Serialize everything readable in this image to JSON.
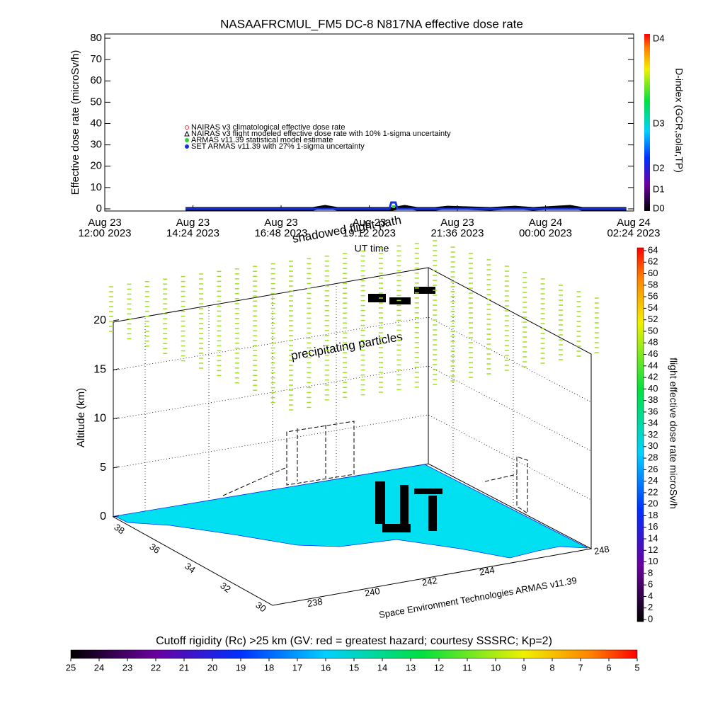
{
  "chart_data": [
    {
      "type": "line",
      "title": "NASAAFRCMUL_FM5 DC-8   N817NA effective dose rate",
      "ylabel": "Effective dose rate (microSv/h)",
      "xlabel": "UT time",
      "y2label": "D-index (GCR,solar,TP)",
      "ylim": [
        -1,
        82
      ],
      "yticks": [
        0,
        10,
        20,
        30,
        40,
        50,
        60,
        70,
        80
      ],
      "xlim": [
        "2023-08-23T12:00",
        "2023-08-24T02:24"
      ],
      "xticks": [
        {
          "value": "2023-08-23T12:00",
          "label": [
            "Aug 23",
            "12:00 2023"
          ]
        },
        {
          "value": "2023-08-23T14:24",
          "label": [
            "Aug 23",
            "14:24 2023"
          ]
        },
        {
          "value": "2023-08-23T16:48",
          "label": [
            "Aug 23",
            "16:48 2023"
          ]
        },
        {
          "value": "2023-08-23T19:12",
          "label": [
            "Aug 23",
            "19:12 2023"
          ]
        },
        {
          "value": "2023-08-23T21:36",
          "label": [
            "Aug 23",
            "21:36 2023"
          ]
        },
        {
          "value": "2023-08-24T00:00",
          "label": [
            "Aug 24",
            "00:00 2023"
          ]
        },
        {
          "value": "2023-08-24T02:24",
          "label": [
            "Aug 24",
            "02:24 2023"
          ]
        }
      ],
      "y2ticks": [
        "D0",
        "D1",
        "D2",
        "D3",
        "D4"
      ],
      "series": [
        {
          "name": "NAIRAS v3 climatological effective dose rate",
          "color": "#ff3030",
          "marker": "circle",
          "x": [],
          "values": []
        },
        {
          "name": "NAIRAS v3 flight modeled effective dose rate with 10% 1-sigma uncertainty",
          "color": "#000000",
          "marker": "triangle",
          "x": [
            "2023-08-23T14:12",
            "2023-08-23T17:40",
            "2023-08-23T18:00",
            "2023-08-23T18:20",
            "2023-08-23T19:50",
            "2023-08-23T20:10",
            "2023-08-23T20:30",
            "2023-08-23T21:00",
            "2023-08-23T21:20",
            "2023-08-23T22:30",
            "2023-08-23T23:10",
            "2023-08-23T23:40",
            "2023-08-24T00:40",
            "2023-08-24T01:00",
            "2023-08-24T02:12"
          ],
          "values": [
            0,
            0,
            1,
            0,
            0,
            1,
            0,
            0,
            0.6,
            0,
            0.6,
            0,
            1,
            0,
            0
          ]
        },
        {
          "name": "ARMAS v11.39 statistical model estimate",
          "color": "#30d030",
          "marker": "square",
          "x": [
            "2023-08-23T19:52"
          ],
          "values": [
            1
          ]
        },
        {
          "name": "SET ARMAS v11.39 with 27% 1-sigma uncertainty",
          "color": "#1030e0",
          "marker": "dot",
          "x": [
            "2023-08-23T14:12",
            "2023-08-23T19:45",
            "2023-08-23T19:48",
            "2023-08-23T19:55",
            "2023-08-23T19:58",
            "2023-08-24T02:12"
          ],
          "values": [
            0,
            0,
            3,
            3,
            0,
            0
          ]
        }
      ]
    },
    {
      "type": "surface3d",
      "zlabel": "Altitude (km)",
      "zlim": [
        0,
        20
      ],
      "zticks": [
        0,
        5,
        10,
        15,
        20
      ],
      "lat_ticks": [
        38,
        36,
        34,
        32,
        30
      ],
      "lon_ticks": [
        238,
        240,
        242,
        244,
        248
      ],
      "annotations": [
        "precipitating particles",
        "shadowed flight path"
      ],
      "credit": "Space Environment Technologies ARMAS v11.39"
    },
    {
      "type": "colorbar",
      "label": "flight effective dose rate microSv/h",
      "ylim": [
        0,
        64
      ],
      "ticks": [
        0,
        2,
        4,
        6,
        8,
        10,
        12,
        14,
        16,
        18,
        20,
        22,
        24,
        26,
        28,
        30,
        32,
        34,
        36,
        38,
        40,
        42,
        44,
        46,
        48,
        50,
        52,
        54,
        56,
        58,
        60,
        62,
        64
      ]
    },
    {
      "type": "colorbar",
      "label": "Cutoff rigidity (Rc) >25 km (GV: red = greatest hazard; courtesy SSSRC; Kp=2)",
      "xlim": [
        25,
        5
      ],
      "ticks": [
        25,
        24,
        23,
        22,
        21,
        20,
        19,
        18,
        17,
        16,
        15,
        14,
        13,
        12,
        11,
        10,
        9,
        8,
        7,
        6,
        5
      ]
    }
  ]
}
